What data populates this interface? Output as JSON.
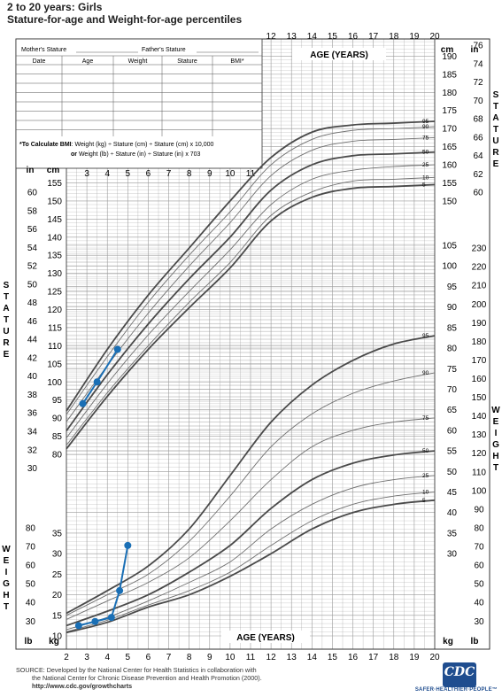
{
  "page": {
    "title_line1": "2 to 20 years: Girls",
    "title_line2": "Stature-for-age and Weight-for-age percentiles",
    "source_line1": "SOURCE: Developed by the National Center for Health Statistics in collaboration with",
    "source_line2": "the National Center for Chronic Disease Prevention and Health Promotion (2000).",
    "source_url": "http://www.cdc.gov/growthcharts",
    "logo_text": "CDC",
    "logo_tagline": "SAFER·HEALTHIER·PEOPLE™"
  },
  "form": {
    "mothers_stature_label": "Mother's Stature",
    "fathers_stature_label": "Father's Stature",
    "columns": [
      "Date",
      "Age",
      "Weight",
      "Stature",
      "BMI*"
    ],
    "bmi_note_bold": "*To Calculate BMI",
    "bmi_note_line1": ": Weight (kg) ÷ Stature (cm) ÷ Stature (cm) x 10,000",
    "bmi_note_line2_bold": "or",
    "bmi_note_line2": " Weight (lb) ÷ Stature (in) ÷ Stature (in) x 703"
  },
  "labels": {
    "age_years": "AGE (YEARS)",
    "cm": "cm",
    "in": "in",
    "kg": "kg",
    "lb": "lb",
    "stature_vertical": "STATURE",
    "weight_vertical": "WEIGHT"
  },
  "colors": {
    "grid": "#9a9a9a",
    "curve_major": "#4a4a4a",
    "curve_minor": "#707070",
    "patient": "#1a6fb5"
  },
  "chart_data": {
    "type": "line",
    "x_label": "AGE (YEARS)",
    "x_range": [
      2,
      20
    ],
    "x_ticks": [
      2,
      3,
      4,
      5,
      6,
      7,
      8,
      9,
      10,
      11,
      12,
      13,
      14,
      15,
      16,
      17,
      18,
      19,
      20
    ],
    "stature_axis": {
      "unit": "cm",
      "range_cm": [
        80,
        195
      ],
      "unit2": "in"
    },
    "weight_axis": {
      "unit": "kg",
      "range_kg": [
        10,
        105
      ],
      "unit2": "lb"
    },
    "percentile_labels": [
      "95",
      "90",
      "75",
      "50",
      "25",
      "10",
      "5"
    ],
    "stature_percentiles": [
      {
        "name": "95",
        "x": [
          2,
          4,
          6,
          8,
          10,
          12,
          14,
          16,
          18,
          20
        ],
        "y": [
          92,
          109,
          124,
          137,
          150,
          162,
          169,
          171,
          171.5,
          172
        ]
      },
      {
        "name": "90",
        "x": [
          2,
          4,
          6,
          8,
          10,
          12,
          14,
          16,
          18,
          20
        ],
        "y": [
          91,
          107,
          122,
          135,
          147,
          160,
          167,
          169.5,
          170,
          170.5
        ]
      },
      {
        "name": "75",
        "x": [
          2,
          4,
          6,
          8,
          10,
          12,
          14,
          16,
          18,
          20
        ],
        "y": [
          89,
          104.5,
          119,
          132,
          144,
          157,
          164,
          166.5,
          167,
          167.5
        ]
      },
      {
        "name": "50",
        "x": [
          2,
          4,
          6,
          8,
          10,
          12,
          14,
          16,
          18,
          20
        ],
        "y": [
          86.5,
          102,
          116,
          128.5,
          140,
          153,
          160,
          162.5,
          163,
          163.5
        ]
      },
      {
        "name": "25",
        "x": [
          2,
          4,
          6,
          8,
          10,
          12,
          14,
          16,
          18,
          20
        ],
        "y": [
          84.5,
          99.5,
          113,
          125,
          136.5,
          149,
          156,
          158.5,
          159.5,
          160
        ]
      },
      {
        "name": "10",
        "x": [
          2,
          4,
          6,
          8,
          10,
          12,
          14,
          16,
          18,
          20
        ],
        "y": [
          82.5,
          97,
          110,
          122,
          133,
          146,
          152.5,
          155.5,
          156,
          156.5
        ]
      },
      {
        "name": "5",
        "x": [
          2,
          4,
          6,
          8,
          10,
          12,
          14,
          16,
          18,
          20
        ],
        "y": [
          81.5,
          96,
          109,
          120.5,
          131.5,
          144.5,
          151,
          153.5,
          154,
          154.5
        ]
      }
    ],
    "weight_percentiles": [
      {
        "name": "95",
        "x": [
          2,
          4,
          6,
          8,
          10,
          12,
          14,
          16,
          18,
          20
        ],
        "y": [
          15.5,
          21,
          27,
          36,
          49,
          62,
          71,
          77,
          81,
          83
        ]
      },
      {
        "name": "90",
        "x": [
          2,
          4,
          6,
          8,
          10,
          12,
          14,
          16,
          18,
          20
        ],
        "y": [
          15,
          20,
          25,
          33,
          44,
          56,
          64,
          69,
          72,
          74
        ]
      },
      {
        "name": "75",
        "x": [
          2,
          4,
          6,
          8,
          10,
          12,
          14,
          16,
          18,
          20
        ],
        "y": [
          14,
          18.5,
          23,
          29,
          38,
          48,
          56,
          60,
          62,
          63
        ]
      },
      {
        "name": "50",
        "x": [
          2,
          4,
          6,
          8,
          10,
          12,
          14,
          16,
          18,
          20
        ],
        "y": [
          12.5,
          16,
          20,
          25.5,
          32,
          41,
          48,
          52,
          54,
          55
        ]
      },
      {
        "name": "25",
        "x": [
          2,
          4,
          6,
          8,
          10,
          12,
          14,
          16,
          18,
          20
        ],
        "y": [
          11.5,
          14.5,
          18.5,
          23,
          28,
          36,
          42,
          46,
          48,
          49
        ]
      },
      {
        "name": "10",
        "x": [
          2,
          4,
          6,
          8,
          10,
          12,
          14,
          16,
          18,
          20
        ],
        "y": [
          11,
          13.8,
          17.5,
          21,
          25.5,
          32,
          38,
          42,
          44,
          45
        ]
      },
      {
        "name": "5",
        "x": [
          2,
          4,
          6,
          8,
          10,
          12,
          14,
          16,
          18,
          20
        ],
        "y": [
          10.8,
          13.3,
          17,
          20,
          24.5,
          30,
          36,
          40,
          42,
          43
        ]
      }
    ],
    "patient_stature": {
      "x": [
        2.8,
        3.5,
        4.5
      ],
      "y": [
        94,
        100,
        109
      ]
    },
    "patient_weight": {
      "x": [
        2.6,
        3.4,
        4.2,
        4.6,
        5.0
      ],
      "y": [
        12.5,
        13.5,
        14.5,
        21,
        32
      ]
    }
  }
}
